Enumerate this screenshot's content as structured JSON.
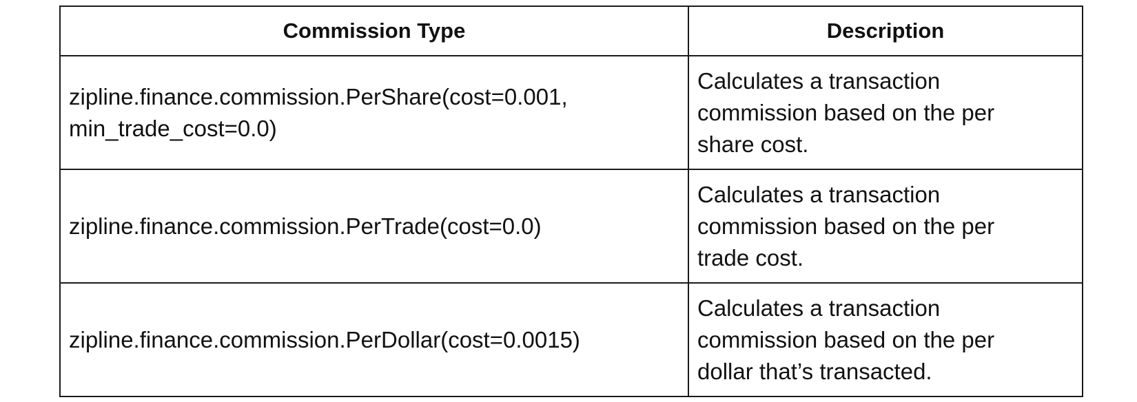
{
  "table": {
    "headers": [
      "Commission Type",
      "Description"
    ],
    "rows": [
      {
        "type": "zipline.finance.commission.PerShare(cost=0.001,\nmin_trade_cost=0.0)",
        "description": "Calculates a transaction\ncommission based on the per\nshare cost."
      },
      {
        "type": "zipline.finance.commission.PerTrade(cost=0.0)",
        "description": "Calculates a transaction\ncommission based on the per\ntrade cost."
      },
      {
        "type": "zipline.finance.commission.PerDollar(cost=0.0015)",
        "description": "Calculates a transaction\ncommission based on the per\ndollar that’s transacted."
      }
    ]
  }
}
